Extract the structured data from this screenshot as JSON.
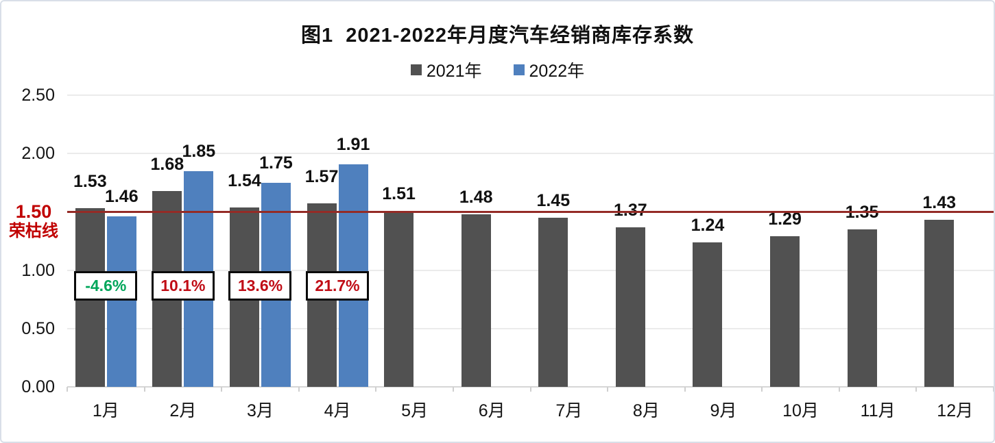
{
  "chart_data": {
    "type": "bar",
    "title": "图1  2021-2022年月度汽车经销商库存系数",
    "categories": [
      "1月",
      "2月",
      "3月",
      "4月",
      "5月",
      "6月",
      "7月",
      "8月",
      "9月",
      "10月",
      "11月",
      "12月"
    ],
    "series": [
      {
        "name": "2021年",
        "color": "#515151",
        "values": [
          1.53,
          1.68,
          1.54,
          1.57,
          1.51,
          1.48,
          1.45,
          1.37,
          1.24,
          1.29,
          1.35,
          1.43
        ]
      },
      {
        "name": "2022年",
        "color": "#4F80BE",
        "values": [
          1.46,
          1.85,
          1.75,
          1.91,
          null,
          null,
          null,
          null,
          null,
          null,
          null,
          null
        ]
      }
    ],
    "ylim": [
      0,
      2.5
    ],
    "yticks": [
      {
        "value": 0,
        "label": "0.00"
      },
      {
        "value": 0.5,
        "label": "0.50"
      },
      {
        "value": 1.0,
        "label": "1.00"
      },
      {
        "value": 1.5,
        "label": "1.50",
        "highlighted": true
      },
      {
        "value": 2.0,
        "label": "2.00"
      },
      {
        "value": 2.5,
        "label": "2.50"
      }
    ],
    "grid": "horizontal",
    "legend_position": "top",
    "reference_line": {
      "value": 1.5,
      "label": "1.50",
      "sublabel": "荣枯线",
      "line_color": "#942B26",
      "text_color": "#C00000"
    },
    "yoy_change_labels": [
      {
        "category": "1月",
        "text": "-4.6%",
        "color": "#00A65A"
      },
      {
        "category": "2月",
        "text": "10.1%",
        "color": "#C00D16"
      },
      {
        "category": "3月",
        "text": "13.6%",
        "color": "#C00D16"
      },
      {
        "category": "4月",
        "text": "21.7%",
        "color": "#C00D16"
      }
    ]
  }
}
